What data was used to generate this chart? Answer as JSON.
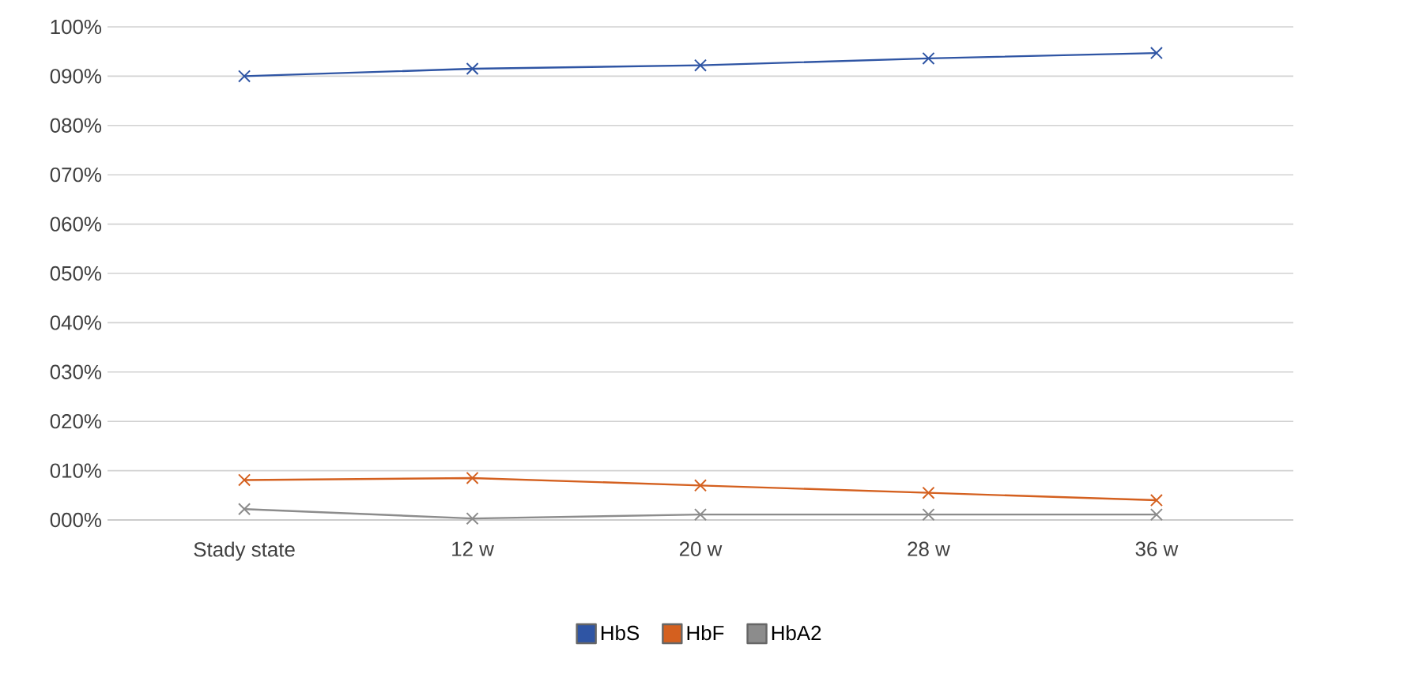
{
  "chart_data": {
    "type": "line",
    "categories": [
      "Stady state",
      "12 w",
      "20 w",
      "28 w",
      "36 w"
    ],
    "series": [
      {
        "name": "HbS",
        "color": "#2f55a4",
        "values": [
          90.0,
          91.5,
          92.2,
          93.6,
          94.7
        ]
      },
      {
        "name": "HbF",
        "color": "#d4601f",
        "values": [
          8.1,
          8.5,
          7.0,
          5.5,
          4.0
        ]
      },
      {
        "name": "HbA2",
        "color": "#8c8c8c",
        "values": [
          2.2,
          0.3,
          1.1,
          1.1,
          1.1
        ]
      }
    ],
    "ylim": [
      0,
      100
    ],
    "yticks": [
      {
        "value": 0,
        "label": "000%"
      },
      {
        "value": 10,
        "label": "010%"
      },
      {
        "value": 20,
        "label": "020%"
      },
      {
        "value": 30,
        "label": "030%"
      },
      {
        "value": 40,
        "label": "040%"
      },
      {
        "value": 50,
        "label": "050%"
      },
      {
        "value": 60,
        "label": "060%"
      },
      {
        "value": 70,
        "label": "070%"
      },
      {
        "value": 80,
        "label": "080%"
      },
      {
        "value": 90,
        "label": "090%"
      },
      {
        "value": 100,
        "label": "100%"
      }
    ],
    "grid": "y",
    "legend": "bottom",
    "marker": "cross",
    "line_style": "solid"
  }
}
